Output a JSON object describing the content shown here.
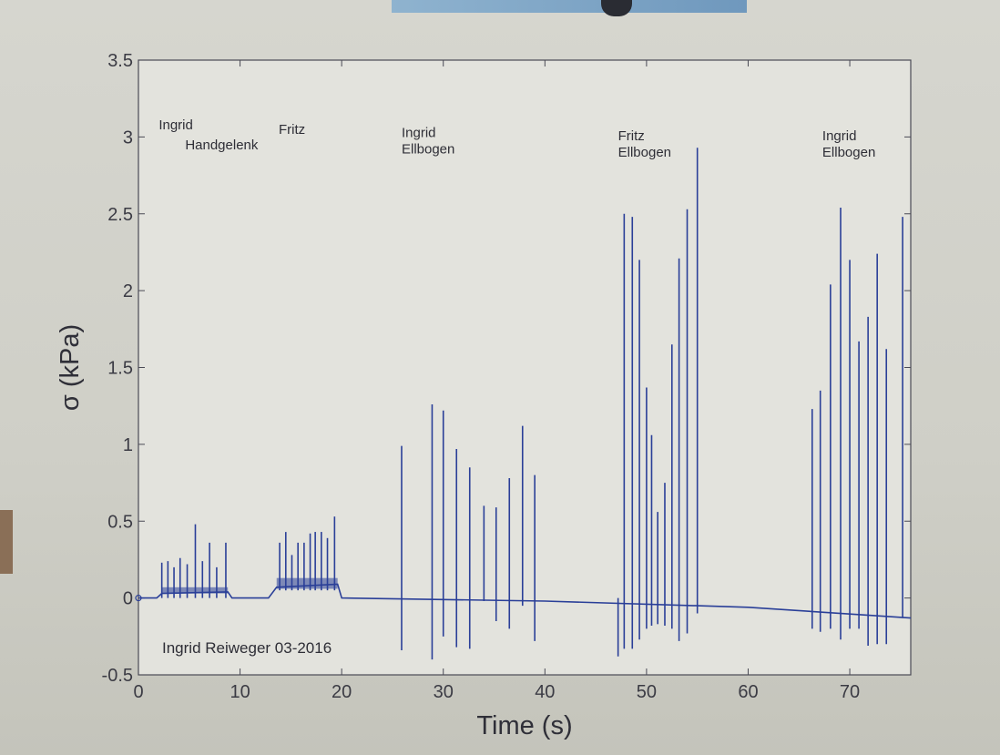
{
  "chart_data": {
    "type": "line",
    "xlabel": "Time (s)",
    "ylabel": "σ (kPa)",
    "xlim": [
      0,
      76
    ],
    "ylim": [
      -0.5,
      3.5
    ],
    "xticks": [
      0,
      10,
      20,
      30,
      40,
      50,
      60,
      70
    ],
    "yticks": [
      -0.5,
      0,
      0.5,
      1,
      1.5,
      2,
      2.5,
      3,
      3.5
    ],
    "grid": false,
    "color": "#2a3f98",
    "baseline": [
      {
        "x": 0,
        "y": 0.0
      },
      {
        "x": 1.8,
        "y": 0.0
      },
      {
        "x": 2.3,
        "y": 0.03
      },
      {
        "x": 8.8,
        "y": 0.04
      },
      {
        "x": 9.2,
        "y": 0.0
      },
      {
        "x": 12.8,
        "y": 0.0
      },
      {
        "x": 13.6,
        "y": 0.07
      },
      {
        "x": 19.6,
        "y": 0.09
      },
      {
        "x": 20.0,
        "y": 0.0
      },
      {
        "x": 40,
        "y": -0.02
      },
      {
        "x": 60,
        "y": -0.06
      },
      {
        "x": 76,
        "y": -0.13
      }
    ],
    "peaks": [
      {
        "x": 2.3,
        "max": 0.23,
        "min": 0.0
      },
      {
        "x": 2.9,
        "max": 0.24,
        "min": 0.0
      },
      {
        "x": 3.5,
        "max": 0.2,
        "min": 0.0
      },
      {
        "x": 4.1,
        "max": 0.26,
        "min": 0.0
      },
      {
        "x": 4.8,
        "max": 0.22,
        "min": 0.0
      },
      {
        "x": 5.6,
        "max": 0.48,
        "min": 0.0
      },
      {
        "x": 6.3,
        "max": 0.24,
        "min": 0.0
      },
      {
        "x": 7.0,
        "max": 0.36,
        "min": 0.0
      },
      {
        "x": 7.7,
        "max": 0.2,
        "min": 0.0
      },
      {
        "x": 8.6,
        "max": 0.36,
        "min": 0.0
      },
      {
        "x": 13.9,
        "max": 0.36,
        "min": 0.05
      },
      {
        "x": 14.5,
        "max": 0.43,
        "min": 0.05
      },
      {
        "x": 15.1,
        "max": 0.28,
        "min": 0.05
      },
      {
        "x": 15.7,
        "max": 0.36,
        "min": 0.05
      },
      {
        "x": 16.3,
        "max": 0.36,
        "min": 0.05
      },
      {
        "x": 16.9,
        "max": 0.42,
        "min": 0.05
      },
      {
        "x": 17.4,
        "max": 0.43,
        "min": 0.05
      },
      {
        "x": 18.0,
        "max": 0.43,
        "min": 0.05
      },
      {
        "x": 18.6,
        "max": 0.39,
        "min": 0.05
      },
      {
        "x": 19.3,
        "max": 0.53,
        "min": 0.05
      },
      {
        "x": 25.9,
        "max": 0.99,
        "min": -0.34
      },
      {
        "x": 28.9,
        "max": 1.26,
        "min": -0.4
      },
      {
        "x": 30.0,
        "max": 1.22,
        "min": -0.25
      },
      {
        "x": 31.3,
        "max": 0.97,
        "min": -0.32
      },
      {
        "x": 32.6,
        "max": 0.85,
        "min": -0.33
      },
      {
        "x": 34.0,
        "max": 0.6,
        "min": -0.02
      },
      {
        "x": 35.2,
        "max": 0.59,
        "min": -0.15
      },
      {
        "x": 36.5,
        "max": 0.78,
        "min": -0.2
      },
      {
        "x": 37.8,
        "max": 1.12,
        "min": -0.05
      },
      {
        "x": 39.0,
        "max": 0.8,
        "min": -0.28
      },
      {
        "x": 47.2,
        "max": 0.0,
        "min": -0.38
      },
      {
        "x": 47.8,
        "max": 2.5,
        "min": -0.33
      },
      {
        "x": 48.6,
        "max": 2.48,
        "min": -0.33
      },
      {
        "x": 49.3,
        "max": 2.2,
        "min": -0.27
      },
      {
        "x": 50.0,
        "max": 1.37,
        "min": -0.2
      },
      {
        "x": 50.5,
        "max": 1.06,
        "min": -0.18
      },
      {
        "x": 51.1,
        "max": 0.56,
        "min": -0.17
      },
      {
        "x": 51.8,
        "max": 0.75,
        "min": -0.18
      },
      {
        "x": 52.5,
        "max": 1.65,
        "min": -0.2
      },
      {
        "x": 53.2,
        "max": 2.21,
        "min": -0.28
      },
      {
        "x": 54.0,
        "max": 2.53,
        "min": -0.23
      },
      {
        "x": 55.0,
        "max": 2.93,
        "min": -0.1
      },
      {
        "x": 66.3,
        "max": 1.23,
        "min": -0.2
      },
      {
        "x": 67.1,
        "max": 1.35,
        "min": -0.22
      },
      {
        "x": 68.1,
        "max": 2.04,
        "min": -0.2
      },
      {
        "x": 69.1,
        "max": 2.54,
        "min": -0.27
      },
      {
        "x": 70.0,
        "max": 2.2,
        "min": -0.2
      },
      {
        "x": 70.9,
        "max": 1.67,
        "min": -0.2
      },
      {
        "x": 71.8,
        "max": 1.83,
        "min": -0.31
      },
      {
        "x": 72.7,
        "max": 2.24,
        "min": -0.3
      },
      {
        "x": 73.6,
        "max": 1.62,
        "min": -0.3
      },
      {
        "x": 75.2,
        "max": 2.48,
        "min": -0.13
      }
    ],
    "annotations": [
      {
        "lines": [
          "Ingrid"
        ],
        "x": 2.0,
        "y": 3.05
      },
      {
        "lines": [
          "Handgelenk"
        ],
        "x": 4.6,
        "y": 2.92
      },
      {
        "lines": [
          "Fritz"
        ],
        "x": 13.8,
        "y": 3.02
      },
      {
        "lines": [
          "Ingrid",
          "Ellbogen"
        ],
        "x": 25.9,
        "y": 3.0
      },
      {
        "lines": [
          "Fritz",
          "Ellbogen"
        ],
        "x": 47.2,
        "y": 2.98
      },
      {
        "lines": [
          "Ingrid",
          "Ellbogen"
        ],
        "x": 67.3,
        "y": 2.98
      }
    ]
  },
  "watermark": "Ingrid Reiweger 03-2016"
}
